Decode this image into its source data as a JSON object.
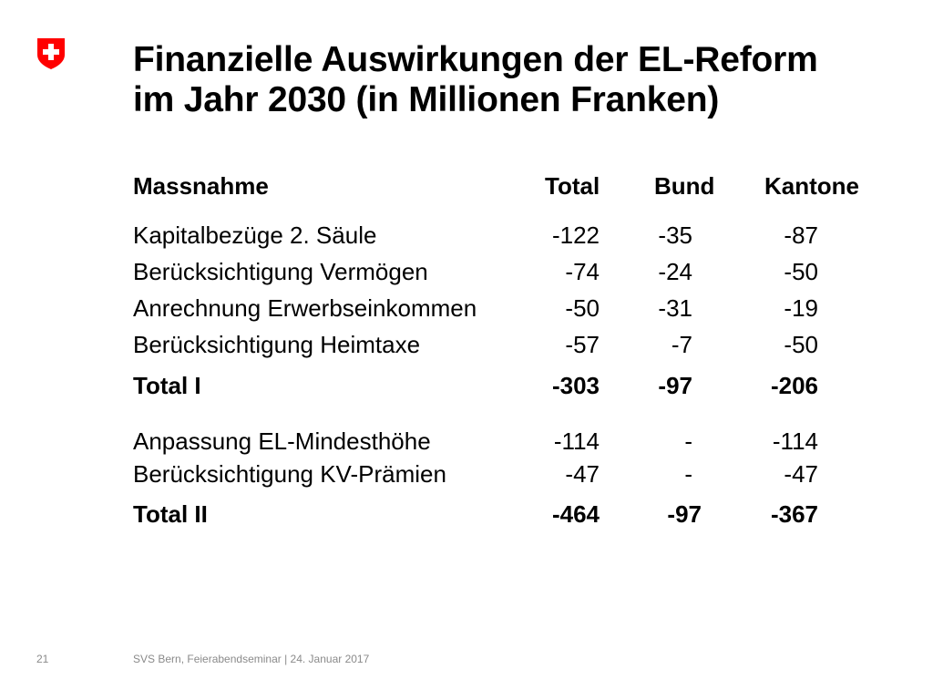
{
  "title": {
    "line1": "Finanzielle Auswirkungen der EL-Reform",
    "line2": "im Jahr 2030 (in Millionen Franken)"
  },
  "header": {
    "massnahme": "Massnahme",
    "total": "Total",
    "bund": "Bund",
    "kantone": "Kantone"
  },
  "rows": [
    {
      "name": "Kapitalbezüge 2. Säule",
      "total": "-122",
      "bund": "-35",
      "kantone": "-87"
    },
    {
      "name": "Berücksichtigung Vermögen",
      "total": "-74",
      "bund": "-24",
      "kantone": "-50"
    },
    {
      "name": "Anrechnung Erwerbseinkommen",
      "total": "-50",
      "bund": "-31",
      "kantone": "-19"
    },
    {
      "name": "Berücksichtigung Heimtaxe",
      "total": "-57",
      "bund": "-7",
      "kantone": "-50"
    },
    {
      "name": "Total I",
      "total": "-303",
      "bund": "-97",
      "kantone": "-206"
    },
    {
      "name": "Anpassung EL-Mindesthöhe",
      "total": "-114",
      "bund": "-",
      "kantone": "-114"
    },
    {
      "name": "Berücksichtigung KV-Prämien",
      "total": "-47",
      "bund": "-",
      "kantone": "-47"
    },
    {
      "name": "Total II",
      "total": "-464",
      "bund": "-97",
      "kantone": "-367"
    }
  ],
  "footer": {
    "page_number": "21",
    "text": "SVS Bern, Feierabendseminar | 24. Januar 2017"
  },
  "colors": {
    "swiss_red": "#ff0000",
    "footer_gray": "#8a8a8a"
  },
  "icons": {
    "logo": "swiss-cross-shield-icon"
  }
}
